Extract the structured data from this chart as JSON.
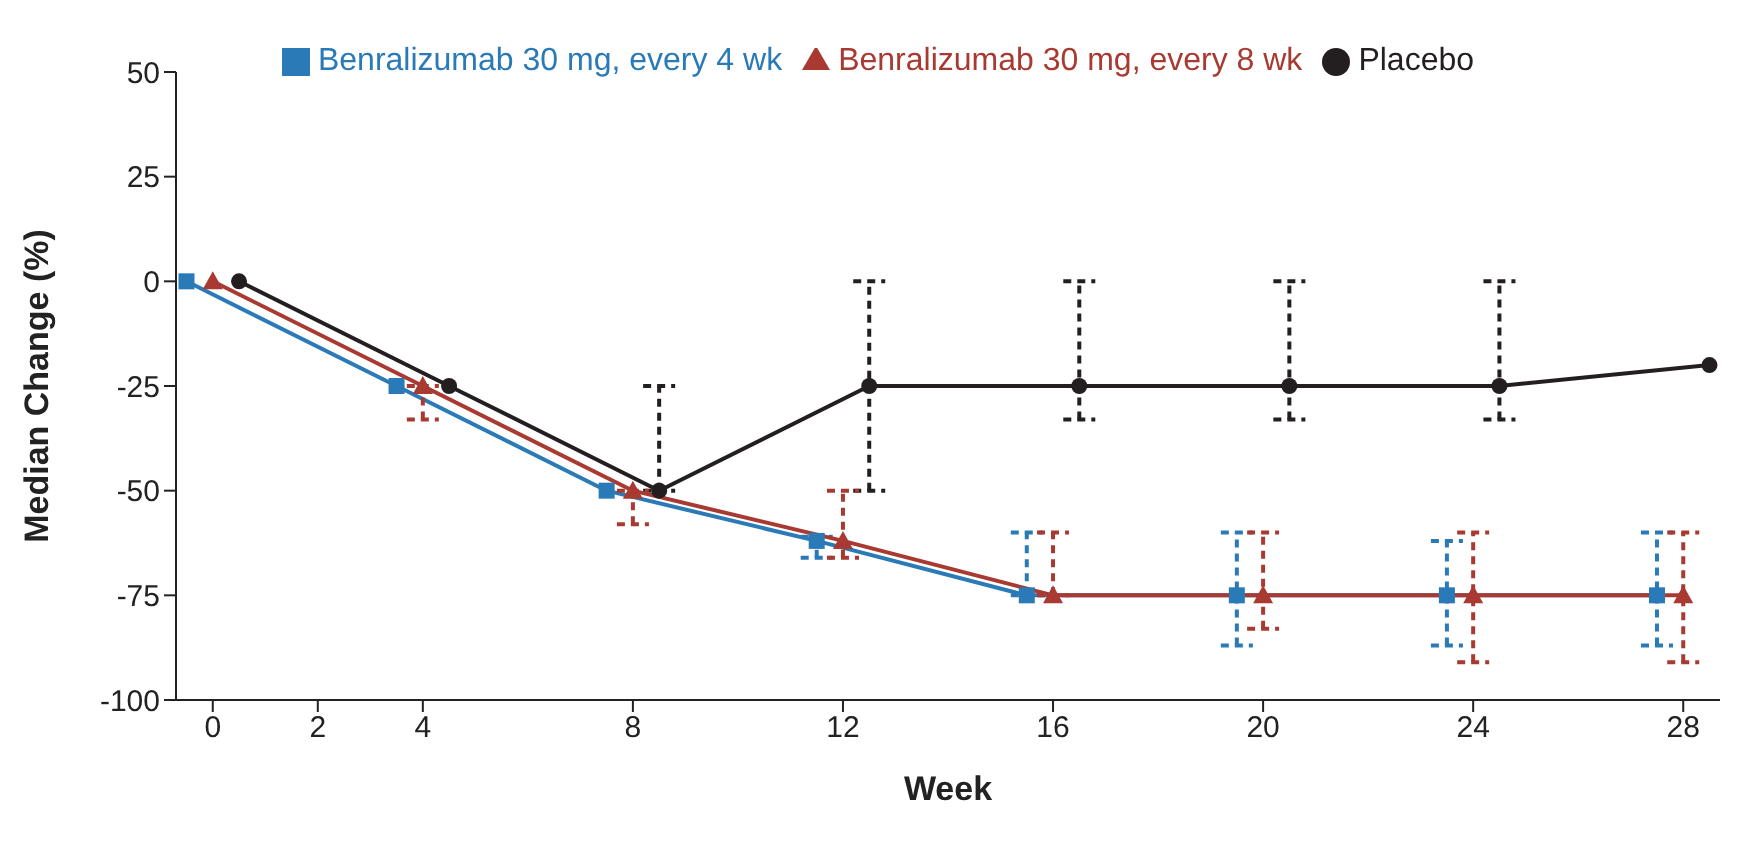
{
  "chart_data": {
    "type": "line",
    "xlabel": "Week",
    "ylabel": "Median Change (%)",
    "xlim": [
      -0.7,
      28.7
    ],
    "xticks": [
      0,
      2,
      4,
      8,
      12,
      16,
      20,
      24,
      28
    ],
    "ylim": [
      -100,
      50
    ],
    "yticks": [
      -100,
      -75,
      -50,
      -25,
      0,
      25,
      50
    ],
    "grid": false,
    "legend": "top",
    "line_style": "solid",
    "series": [
      {
        "name": "Placebo",
        "color": "#231f20",
        "marker": "circle",
        "x": [
          0.5,
          4.5,
          8.5,
          12.5,
          16.5,
          20.5,
          24.5,
          28.5
        ],
        "values": [
          0,
          -25,
          -50,
          -25,
          -25,
          -25,
          -25,
          -20
        ],
        "errors": [
          null,
          null,
          [
            -50,
            -25
          ],
          [
            -50,
            0
          ],
          [
            -33,
            0
          ],
          [
            -33,
            0
          ],
          [
            -33,
            0
          ],
          null
        ]
      },
      {
        "name": "Benralizumab 30 mg, every 4 wk",
        "color": "#2a7ab8",
        "marker": "square",
        "x": [
          -0.5,
          3.5,
          7.5,
          11.5,
          15.5,
          19.5,
          23.5,
          27.5
        ],
        "values": [
          0,
          -25,
          -50,
          -62,
          -75,
          -75,
          -75,
          -75
        ],
        "errors": [
          null,
          null,
          null,
          [
            -66,
            -61
          ],
          [
            -75,
            -60
          ],
          [
            -87,
            -60
          ],
          [
            -87,
            -62
          ],
          [
            -87,
            -60
          ]
        ]
      },
      {
        "name": "Benralizumab 30 mg, every 8 wk",
        "color": "#a83a32",
        "marker": "triangle",
        "x": [
          0,
          4,
          8,
          12,
          16,
          20,
          24,
          28
        ],
        "values": [
          0,
          -25,
          -50,
          -62,
          -75,
          -75,
          -75,
          -75
        ],
        "errors": [
          null,
          [
            -33,
            -25
          ],
          [
            -58,
            -50
          ],
          [
            -66,
            -50
          ],
          [
            -75,
            -60
          ],
          [
            -83,
            -60
          ],
          [
            -91,
            -60
          ],
          [
            -91,
            -60
          ]
        ]
      }
    ]
  }
}
